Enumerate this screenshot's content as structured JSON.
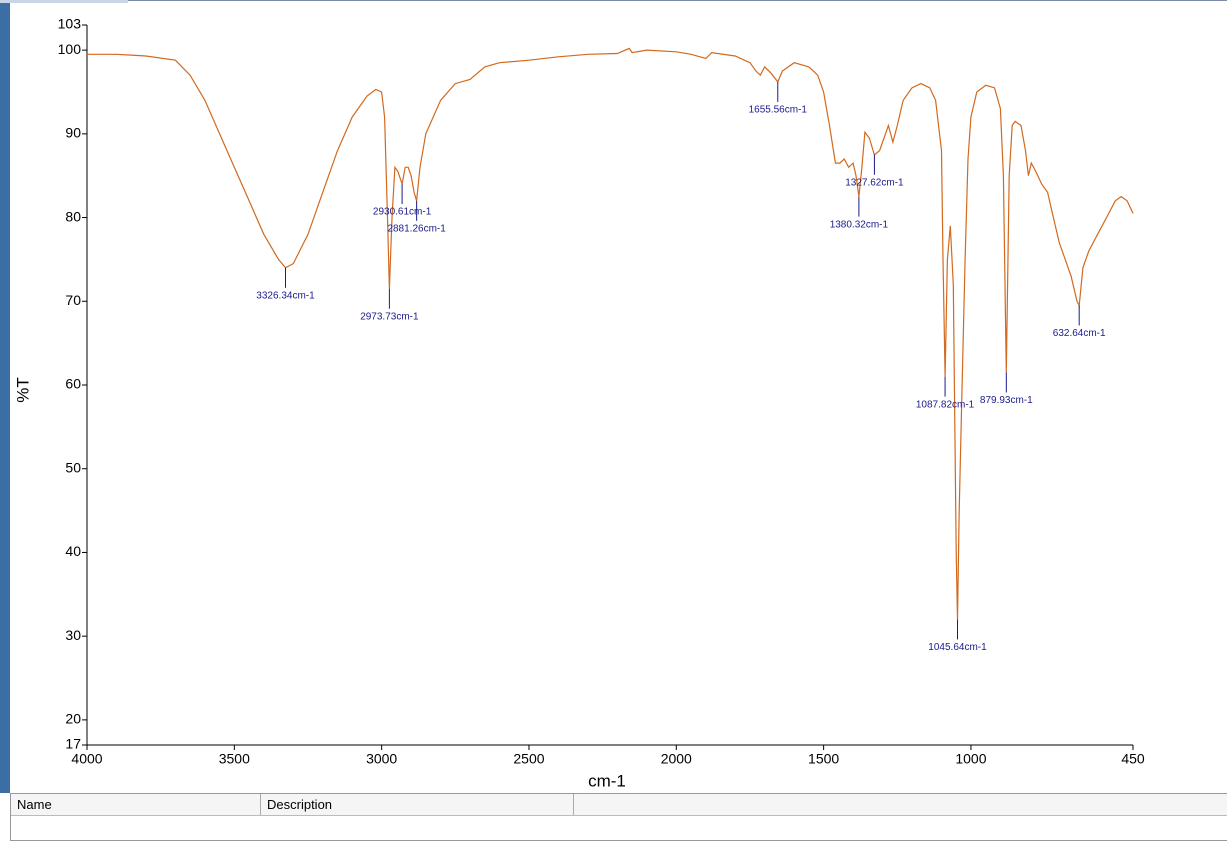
{
  "chart_data": {
    "type": "line",
    "xlabel": "cm-1",
    "ylabel": "%T",
    "xlim": [
      4000,
      450
    ],
    "ylim": [
      17,
      103
    ],
    "xticks": [
      4000,
      3500,
      3000,
      2500,
      2000,
      1500,
      1000,
      450
    ],
    "yticks": [
      17,
      20,
      30,
      40,
      50,
      60,
      70,
      80,
      90,
      100,
      103
    ],
    "series": [
      {
        "color": "#d2691e",
        "x": [
          4000,
          3900,
          3800,
          3700,
          3650,
          3600,
          3550,
          3500,
          3450,
          3400,
          3350,
          3326.34,
          3300,
          3250,
          3200,
          3150,
          3100,
          3050,
          3020,
          3000,
          2990,
          2980,
          2973.73,
          2965,
          2955,
          2945,
          2930.61,
          2920,
          2910,
          2900,
          2890,
          2881.26,
          2870,
          2850,
          2800,
          2750,
          2700,
          2650,
          2600,
          2500,
          2400,
          2300,
          2200,
          2160,
          2150,
          2100,
          2000,
          1950,
          1900,
          1880,
          1800,
          1750,
          1730,
          1715,
          1700,
          1680,
          1655.56,
          1640,
          1600,
          1550,
          1520,
          1500,
          1480,
          1460,
          1445,
          1430,
          1415,
          1400,
          1390,
          1380.32,
          1370,
          1360,
          1345,
          1327.62,
          1310,
          1295,
          1280,
          1265,
          1250,
          1230,
          1200,
          1170,
          1140,
          1120,
          1100,
          1095,
          1087.82,
          1080,
          1070,
          1060,
          1050,
          1045.64,
          1040,
          1030,
          1020,
          1010,
          1000,
          980,
          950,
          920,
          900,
          890,
          879.93,
          870,
          860,
          850,
          830,
          815,
          805,
          795,
          780,
          760,
          740,
          720,
          700,
          680,
          660,
          640,
          632.64,
          620,
          600,
          570,
          540,
          510,
          490,
          470,
          450
        ],
        "values": [
          99.5,
          99.5,
          99.3,
          98.8,
          97,
          94,
          90,
          86,
          82,
          78,
          75,
          74,
          74.5,
          78,
          83,
          88,
          92,
          94.5,
          95.3,
          95,
          92,
          80,
          71.5,
          80,
          86,
          85.5,
          84,
          86,
          86,
          85,
          83,
          82,
          86,
          90,
          94,
          96,
          96.5,
          98,
          98.5,
          98.8,
          99.2,
          99.5,
          99.6,
          100.2,
          99.7,
          100,
          99.8,
          99.5,
          99,
          99.7,
          99.3,
          98.5,
          97.5,
          97,
          98,
          97.3,
          96.2,
          97.5,
          98.5,
          98,
          97,
          95,
          91,
          86.5,
          86.5,
          87,
          86,
          86.5,
          85,
          82.5,
          86,
          90.2,
          89.5,
          87.5,
          88,
          89.5,
          91,
          89,
          91,
          94,
          95.5,
          96,
          95.5,
          94,
          88,
          75,
          61,
          75,
          79,
          72,
          40,
          32,
          45,
          60,
          75,
          87,
          92,
          95,
          95.8,
          95.5,
          93,
          85,
          61.5,
          85,
          91,
          91.5,
          91,
          88,
          85,
          86.5,
          85.5,
          84,
          83,
          80,
          77,
          75,
          73,
          70,
          69.5,
          74,
          76,
          78,
          80,
          82,
          82.5,
          82,
          80.5
        ]
      }
    ],
    "annotations": [
      {
        "x": 3326.34,
        "y": 74,
        "label": "3326.34cm-1"
      },
      {
        "x": 2973.73,
        "y": 71.5,
        "label": "2973.73cm-1"
      },
      {
        "x": 2930.61,
        "y": 84,
        "label": "2930.61cm-1"
      },
      {
        "x": 2881.26,
        "y": 82,
        "label": "2881.26cm-1"
      },
      {
        "x": 1655.56,
        "y": 96.2,
        "label": "1655.56cm-1"
      },
      {
        "x": 1380.32,
        "y": 82.5,
        "label": "1380.32cm-1"
      },
      {
        "x": 1327.62,
        "y": 87.5,
        "label": "1327.62cm-1"
      },
      {
        "x": 1087.82,
        "y": 61,
        "label": "1087.82cm-1"
      },
      {
        "x": 1045.64,
        "y": 32,
        "label": "1045.64cm-1"
      },
      {
        "x": 879.93,
        "y": 61.5,
        "label": "879.93cm-1"
      },
      {
        "x": 632.64,
        "y": 69.5,
        "label": "632.64cm-1"
      }
    ]
  },
  "table": {
    "headers": [
      "Name",
      "Description"
    ]
  }
}
